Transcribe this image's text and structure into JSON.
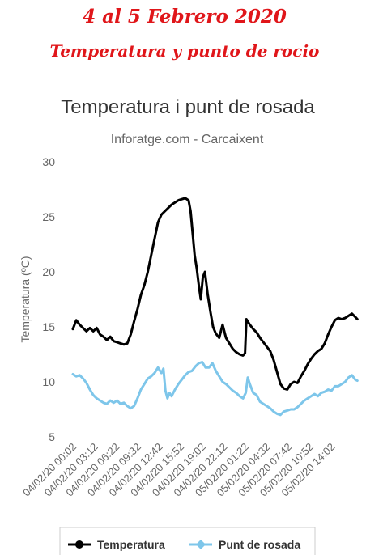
{
  "banner": {
    "line1": "4 al 5 Febrero 2020",
    "line2": "Temperatura y punto de rocio"
  },
  "chart_data": {
    "type": "line",
    "title": "Temperatura i punt de rosada",
    "subtitle": "Inforatge.com - Carcaixent",
    "ylabel": "Temperatura (ºC)",
    "ylim": [
      5,
      30
    ],
    "yticks": [
      5,
      10,
      15,
      20,
      25,
      30
    ],
    "xlim": [
      0,
      42
    ],
    "x_ticks": [
      {
        "x": 0,
        "label": "04/02/20 00:02"
      },
      {
        "x": 3.17,
        "label": "04/02/20 03:12"
      },
      {
        "x": 6.33,
        "label": "04/02/20 06:22"
      },
      {
        "x": 9.5,
        "label": "04/02/20 09:32"
      },
      {
        "x": 12.67,
        "label": "04/02/20 12:42"
      },
      {
        "x": 15.83,
        "label": "04/02/20 15:52"
      },
      {
        "x": 19.0,
        "label": "04/02/20 19:02"
      },
      {
        "x": 22.17,
        "label": "04/02/20 22:12"
      },
      {
        "x": 25.33,
        "label": "05/02/20 01:22"
      },
      {
        "x": 28.5,
        "label": "05/02/20 04:32"
      },
      {
        "x": 31.67,
        "label": "05/02/20 07:42"
      },
      {
        "x": 34.83,
        "label": "05/02/20 10:52"
      },
      {
        "x": 38.0,
        "label": "05/02/20 14:02"
      }
    ],
    "grid": false,
    "legend_position": "bottom",
    "series": [
      {
        "name": "Temperatura",
        "color": "#000000",
        "points": [
          [
            0,
            14.8
          ],
          [
            0.5,
            15.6
          ],
          [
            1,
            15.2
          ],
          [
            1.5,
            14.9
          ],
          [
            2,
            14.6
          ],
          [
            2.5,
            14.9
          ],
          [
            3,
            14.6
          ],
          [
            3.5,
            14.9
          ],
          [
            4,
            14.3
          ],
          [
            4.5,
            14.1
          ],
          [
            5,
            13.8
          ],
          [
            5.5,
            14.1
          ],
          [
            6,
            13.7
          ],
          [
            6.5,
            13.6
          ],
          [
            7,
            13.5
          ],
          [
            7.5,
            13.4
          ],
          [
            8,
            13.5
          ],
          [
            8.5,
            14.3
          ],
          [
            9,
            15.5
          ],
          [
            9.5,
            16.6
          ],
          [
            10,
            17.9
          ],
          [
            10.5,
            18.8
          ],
          [
            11,
            20.0
          ],
          [
            11.5,
            21.5
          ],
          [
            12,
            23.0
          ],
          [
            12.5,
            24.5
          ],
          [
            13,
            25.2
          ],
          [
            13.5,
            25.5
          ],
          [
            14,
            25.8
          ],
          [
            14.5,
            26.1
          ],
          [
            15,
            26.3
          ],
          [
            15.5,
            26.5
          ],
          [
            16,
            26.6
          ],
          [
            16.5,
            26.7
          ],
          [
            17,
            26.5
          ],
          [
            17.3,
            25.5
          ],
          [
            17.6,
            23.5
          ],
          [
            17.9,
            21.5
          ],
          [
            18.2,
            20.3
          ],
          [
            18.5,
            18.8
          ],
          [
            18.8,
            17.5
          ],
          [
            19.1,
            19.5
          ],
          [
            19.4,
            20.0
          ],
          [
            19.8,
            18.0
          ],
          [
            20.2,
            16.4
          ],
          [
            20.6,
            15.0
          ],
          [
            21,
            14.4
          ],
          [
            21.5,
            14.0
          ],
          [
            22,
            15.2
          ],
          [
            22.5,
            14.0
          ],
          [
            23,
            13.5
          ],
          [
            23.5,
            13.0
          ],
          [
            24,
            12.7
          ],
          [
            24.5,
            12.5
          ],
          [
            25,
            12.4
          ],
          [
            25.3,
            12.6
          ],
          [
            25.5,
            15.7
          ],
          [
            26,
            15.2
          ],
          [
            26.5,
            14.8
          ],
          [
            27,
            14.5
          ],
          [
            27.5,
            14.0
          ],
          [
            28,
            13.6
          ],
          [
            28.5,
            13.2
          ],
          [
            29,
            12.8
          ],
          [
            29.5,
            12.0
          ],
          [
            30,
            10.9
          ],
          [
            30.5,
            9.8
          ],
          [
            31,
            9.4
          ],
          [
            31.5,
            9.3
          ],
          [
            32,
            9.8
          ],
          [
            32.5,
            10.0
          ],
          [
            33,
            9.9
          ],
          [
            33.5,
            10.5
          ],
          [
            34,
            11.0
          ],
          [
            34.5,
            11.6
          ],
          [
            35,
            12.1
          ],
          [
            35.5,
            12.5
          ],
          [
            36,
            12.8
          ],
          [
            36.5,
            13.0
          ],
          [
            37,
            13.5
          ],
          [
            37.5,
            14.3
          ],
          [
            38,
            15.0
          ],
          [
            38.5,
            15.6
          ],
          [
            39,
            15.8
          ],
          [
            39.5,
            15.7
          ],
          [
            40,
            15.8
          ],
          [
            40.5,
            16.0
          ],
          [
            41,
            16.2
          ],
          [
            41.5,
            15.9
          ],
          [
            41.8,
            15.7
          ]
        ]
      },
      {
        "name": "Punt de rosada",
        "color": "#7ec6ea",
        "points": [
          [
            0,
            10.7
          ],
          [
            0.5,
            10.5
          ],
          [
            1,
            10.6
          ],
          [
            1.5,
            10.3
          ],
          [
            2,
            9.9
          ],
          [
            2.5,
            9.3
          ],
          [
            3,
            8.8
          ],
          [
            3.5,
            8.5
          ],
          [
            4,
            8.3
          ],
          [
            4.5,
            8.1
          ],
          [
            5,
            8.0
          ],
          [
            5.5,
            8.3
          ],
          [
            6,
            8.1
          ],
          [
            6.5,
            8.3
          ],
          [
            7,
            8.0
          ],
          [
            7.5,
            8.1
          ],
          [
            8,
            7.8
          ],
          [
            8.5,
            7.6
          ],
          [
            9,
            7.8
          ],
          [
            9.5,
            8.5
          ],
          [
            10,
            9.3
          ],
          [
            10.5,
            9.8
          ],
          [
            11,
            10.3
          ],
          [
            11.5,
            10.5
          ],
          [
            12,
            10.8
          ],
          [
            12.5,
            11.3
          ],
          [
            13,
            10.8
          ],
          [
            13.3,
            11.2
          ],
          [
            13.6,
            9.2
          ],
          [
            13.9,
            8.5
          ],
          [
            14.2,
            9.0
          ],
          [
            14.5,
            8.7
          ],
          [
            15,
            9.3
          ],
          [
            15.5,
            9.8
          ],
          [
            16,
            10.2
          ],
          [
            16.5,
            10.6
          ],
          [
            17,
            10.9
          ],
          [
            17.5,
            11.0
          ],
          [
            18,
            11.4
          ],
          [
            18.5,
            11.7
          ],
          [
            19,
            11.8
          ],
          [
            19.5,
            11.3
          ],
          [
            20,
            11.3
          ],
          [
            20.5,
            11.7
          ],
          [
            21,
            11.0
          ],
          [
            21.5,
            10.5
          ],
          [
            22,
            10.0
          ],
          [
            22.5,
            9.8
          ],
          [
            23,
            9.5
          ],
          [
            23.5,
            9.2
          ],
          [
            24,
            9.0
          ],
          [
            24.5,
            8.7
          ],
          [
            25,
            8.5
          ],
          [
            25.4,
            9.0
          ],
          [
            25.7,
            10.4
          ],
          [
            26,
            9.8
          ],
          [
            26.5,
            9.0
          ],
          [
            27,
            8.8
          ],
          [
            27.5,
            8.2
          ],
          [
            28,
            8.0
          ],
          [
            28.5,
            7.8
          ],
          [
            29,
            7.6
          ],
          [
            29.5,
            7.3
          ],
          [
            30,
            7.1
          ],
          [
            30.5,
            7.0
          ],
          [
            31,
            7.3
          ],
          [
            31.5,
            7.4
          ],
          [
            32,
            7.5
          ],
          [
            32.5,
            7.5
          ],
          [
            33,
            7.7
          ],
          [
            33.5,
            8.0
          ],
          [
            34,
            8.3
          ],
          [
            34.5,
            8.5
          ],
          [
            35,
            8.7
          ],
          [
            35.5,
            8.9
          ],
          [
            36,
            8.7
          ],
          [
            36.5,
            9.0
          ],
          [
            37,
            9.1
          ],
          [
            37.5,
            9.3
          ],
          [
            38,
            9.2
          ],
          [
            38.5,
            9.6
          ],
          [
            39,
            9.6
          ],
          [
            39.5,
            9.8
          ],
          [
            40,
            10.0
          ],
          [
            40.5,
            10.4
          ],
          [
            41,
            10.6
          ],
          [
            41.5,
            10.2
          ],
          [
            41.8,
            10.1
          ]
        ]
      }
    ]
  }
}
